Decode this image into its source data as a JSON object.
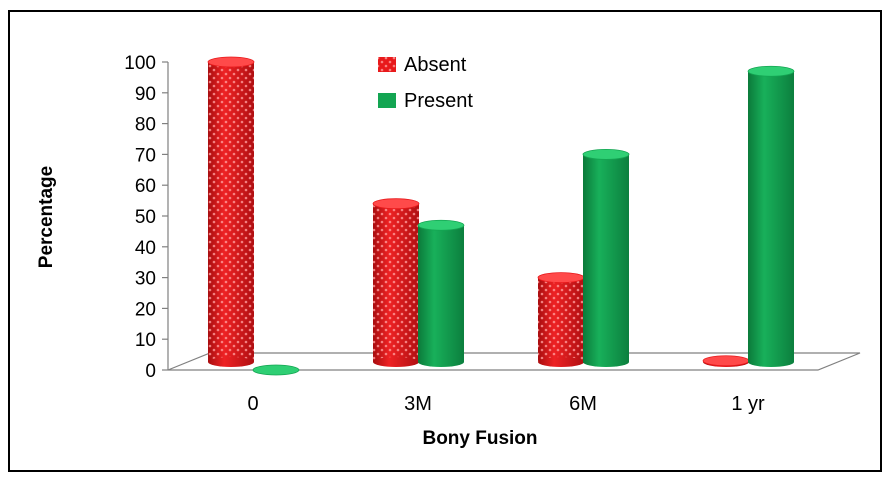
{
  "chart_data": {
    "type": "bar",
    "categories": [
      "0",
      "3M",
      "6M",
      "1 yr"
    ],
    "series": [
      {
        "name": "Absent",
        "values": [
          100,
          54,
          30,
          3
        ],
        "color": "#e8191b"
      },
      {
        "name": "Present",
        "values": [
          0,
          47,
          70,
          97
        ],
        "color": "#13a552"
      }
    ],
    "xlabel": "Bony Fusion",
    "ylabel": "Percentage",
    "ylim": [
      0,
      100
    ],
    "yticks": [
      "0",
      "10",
      "20",
      "30",
      "40",
      "50",
      "60",
      "70",
      "80",
      "90",
      "100"
    ],
    "legend": "top-center",
    "grid": false
  }
}
